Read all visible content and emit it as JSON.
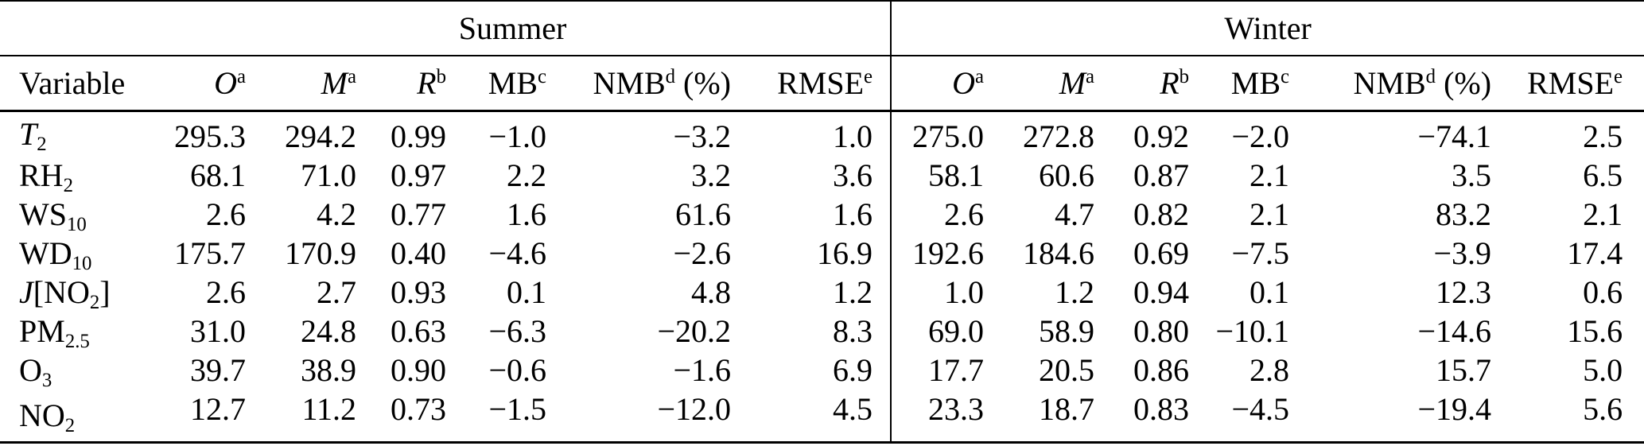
{
  "colors": {
    "background": "#ffffff",
    "text": "#000000",
    "rule": "#000000"
  },
  "table": {
    "group_headers": {
      "summer": "Summer",
      "winter": "Winter"
    },
    "variable_header": "Variable",
    "metric_headers": [
      {
        "name": "O",
        "parts": [
          {
            "t": "O",
            "s": "i"
          },
          {
            "t": "a",
            "s": "sup"
          }
        ]
      },
      {
        "name": "M",
        "parts": [
          {
            "t": "M",
            "s": "i"
          },
          {
            "t": "a",
            "s": "sup"
          }
        ]
      },
      {
        "name": "R",
        "parts": [
          {
            "t": "R",
            "s": "i"
          },
          {
            "t": "b",
            "s": "sup"
          }
        ]
      },
      {
        "name": "MB",
        "parts": [
          {
            "t": "MB"
          },
          {
            "t": "c",
            "s": "sup"
          }
        ]
      },
      {
        "name": "NMB",
        "parts": [
          {
            "t": "NMB"
          },
          {
            "t": "d",
            "s": "sup"
          },
          {
            "t": " (%)"
          }
        ]
      },
      {
        "name": "RMSE",
        "parts": [
          {
            "t": "RMSE"
          },
          {
            "t": "e",
            "s": "sup"
          }
        ]
      }
    ],
    "rows": [
      {
        "variable": {
          "name": "T2",
          "parts": [
            {
              "t": "T",
              "s": "i"
            },
            {
              "t": "2",
              "s": "sub"
            }
          ]
        },
        "summer": [
          "295.3",
          "294.2",
          "0.99",
          "−1.0",
          "−3.2",
          "1.0"
        ],
        "winter": [
          "275.0",
          "272.8",
          "0.92",
          "−2.0",
          "−74.1",
          "2.5"
        ]
      },
      {
        "variable": {
          "name": "RH2",
          "parts": [
            {
              "t": "RH"
            },
            {
              "t": "2",
              "s": "sub"
            }
          ]
        },
        "summer": [
          "68.1",
          "71.0",
          "0.97",
          "2.2",
          "3.2",
          "3.6"
        ],
        "winter": [
          "58.1",
          "60.6",
          "0.87",
          "2.1",
          "3.5",
          "6.5"
        ]
      },
      {
        "variable": {
          "name": "WS10",
          "parts": [
            {
              "t": "WS"
            },
            {
              "t": "10",
              "s": "sub"
            }
          ]
        },
        "summer": [
          "2.6",
          "4.2",
          "0.77",
          "1.6",
          "61.6",
          "1.6"
        ],
        "winter": [
          "2.6",
          "4.7",
          "0.82",
          "2.1",
          "83.2",
          "2.1"
        ]
      },
      {
        "variable": {
          "name": "WD10",
          "parts": [
            {
              "t": "WD"
            },
            {
              "t": "10",
              "s": "sub"
            }
          ]
        },
        "summer": [
          "175.7",
          "170.9",
          "0.40",
          "−4.6",
          "−2.6",
          "16.9"
        ],
        "winter": [
          "192.6",
          "184.6",
          "0.69",
          "−7.5",
          "−3.9",
          "17.4"
        ]
      },
      {
        "variable": {
          "name": "J[NO2]",
          "parts": [
            {
              "t": "J",
              "s": "i"
            },
            {
              "t": "[NO"
            },
            {
              "t": "2",
              "s": "sub"
            },
            {
              "t": "]"
            }
          ]
        },
        "summer": [
          "2.6",
          "2.7",
          "0.93",
          "0.1",
          "4.8",
          "1.2"
        ],
        "winter": [
          "1.0",
          "1.2",
          "0.94",
          "0.1",
          "12.3",
          "0.6"
        ]
      },
      {
        "variable": {
          "name": "PM2.5",
          "parts": [
            {
              "t": "PM"
            },
            {
              "t": "2.5",
              "s": "sub"
            }
          ]
        },
        "summer": [
          "31.0",
          "24.8",
          "0.63",
          "−6.3",
          "−20.2",
          "8.3"
        ],
        "winter": [
          "69.0",
          "58.9",
          "0.80",
          "−10.1",
          "−14.6",
          "15.6"
        ]
      },
      {
        "variable": {
          "name": "O3",
          "parts": [
            {
              "t": "O"
            },
            {
              "t": "3",
              "s": "sub"
            }
          ]
        },
        "summer": [
          "39.7",
          "38.9",
          "0.90",
          "−0.6",
          "−1.6",
          "6.9"
        ],
        "winter": [
          "17.7",
          "20.5",
          "0.86",
          "2.8",
          "15.7",
          "5.0"
        ]
      },
      {
        "variable": {
          "name": "NO2",
          "parts": [
            {
              "t": "NO"
            },
            {
              "t": "2",
              "s": "sub"
            }
          ]
        },
        "summer": [
          "12.7",
          "11.2",
          "0.73",
          "−1.5",
          "−12.0",
          "4.5"
        ],
        "winter": [
          "23.3",
          "18.7",
          "0.83",
          "−4.5",
          "−19.4",
          "5.6"
        ]
      }
    ]
  }
}
